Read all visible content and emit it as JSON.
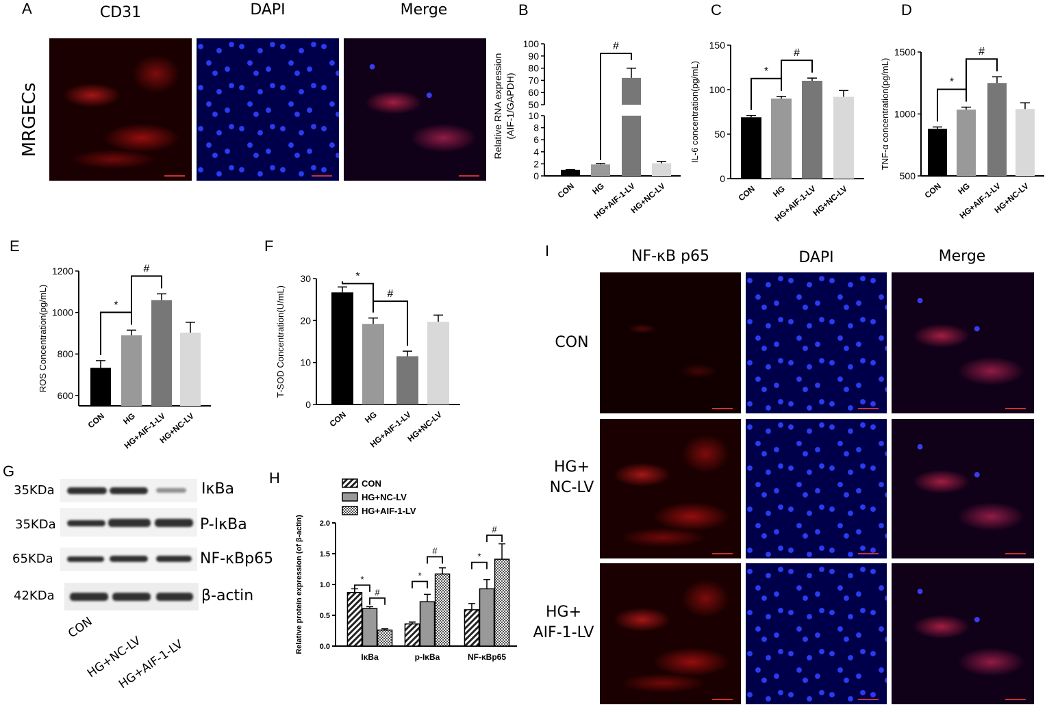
{
  "panel_A": {
    "letter": "A",
    "cols": [
      "CD31",
      "DAPI",
      "Merge"
    ],
    "row": "MRGECs"
  },
  "panel_I": {
    "letter": "I",
    "cols": [
      "NF-κB p65",
      "DAPI",
      "Merge"
    ],
    "rows": [
      {
        "line1": "CON",
        "line2": ""
      },
      {
        "line1": "HG+",
        "line2": "NC-LV"
      },
      {
        "line1": "HG+",
        "line2": "AIF-1-LV"
      }
    ]
  },
  "panel_G": {
    "letter": "G",
    "mw": [
      "35KDa",
      "35KDa",
      "65KDa",
      "42KDa"
    ],
    "proteins": [
      "IκBa",
      "P-IκBa",
      "NF-κBp65",
      "β-actin"
    ],
    "lanes": [
      "CON",
      "HG+NC-LV",
      "HG+AIF-1-LV"
    ]
  },
  "chart_data": [
    {
      "panel": "B",
      "type": "bar",
      "ylabel": "Relative RNA expression (AIF-1/GAPDH)",
      "categories": [
        "CON",
        "HG",
        "HG+AIF-1-LV",
        "HG+NC-LV"
      ],
      "values": [
        1,
        1.9,
        72,
        2.1
      ],
      "errors": [
        0.05,
        0.15,
        8,
        0.3
      ],
      "colors": [
        "#000000",
        "#999999",
        "#777777",
        "#d9d9d9"
      ],
      "axis_break": {
        "lower": [
          0,
          10
        ],
        "upper": [
          50,
          100
        ]
      },
      "lower_ticks": [
        "0",
        "2",
        "4",
        "6",
        "8",
        "10"
      ],
      "upper_ticks": [
        "50",
        "60",
        "70",
        "80",
        "90",
        "100"
      ],
      "annotations": [
        {
          "symbol": "#",
          "between": [
            "HG",
            "HG+AIF-1-LV"
          ]
        }
      ]
    },
    {
      "panel": "C",
      "type": "bar",
      "ylabel": "IL-6 concentration(pg/mL)",
      "categories": [
        "CON",
        "HG",
        "HG+AIF-1-LV",
        "HG+NC-LV"
      ],
      "values": [
        69,
        90,
        110,
        92
      ],
      "errors": [
        2,
        2.5,
        3,
        7
      ],
      "colors": [
        "#000000",
        "#999999",
        "#777777",
        "#d9d9d9"
      ],
      "ylim": [
        0,
        150
      ],
      "yticks": [
        "0",
        "50",
        "100",
        "150"
      ],
      "annotations": [
        {
          "symbol": "*",
          "between": [
            "CON",
            "HG"
          ]
        },
        {
          "symbol": "#",
          "between": [
            "HG",
            "HG+AIF-1-LV"
          ]
        }
      ]
    },
    {
      "panel": "D",
      "type": "bar",
      "ylabel": "TNF-α concentration(pg/mL)",
      "categories": [
        "CON",
        "HG",
        "HG+AIF-1-LV",
        "HG+NC-LV"
      ],
      "values": [
        880,
        1035,
        1250,
        1040
      ],
      "errors": [
        15,
        20,
        50,
        50
      ],
      "colors": [
        "#000000",
        "#999999",
        "#777777",
        "#d9d9d9"
      ],
      "ylim": [
        500,
        1500
      ],
      "yticks": [
        "500",
        "1000",
        "1500"
      ],
      "annotations": [
        {
          "symbol": "*",
          "between": [
            "CON",
            "HG"
          ]
        },
        {
          "symbol": "#",
          "between": [
            "HG",
            "HG+AIF-1-LV"
          ]
        }
      ]
    },
    {
      "panel": "E",
      "type": "bar",
      "ylabel": "ROS Concentration(pg/mL)",
      "categories": [
        "CON",
        "HG",
        "HG+AIF-1-LV",
        "HG+NC-LV"
      ],
      "values": [
        733,
        890,
        1060,
        903
      ],
      "errors": [
        35,
        25,
        30,
        50
      ],
      "colors": [
        "#000000",
        "#999999",
        "#777777",
        "#d9d9d9"
      ],
      "ylim": [
        550,
        1200
      ],
      "yticks": [
        "600",
        "800",
        "1000",
        "1200"
      ],
      "annotations": [
        {
          "symbol": "*",
          "between": [
            "CON",
            "HG"
          ]
        },
        {
          "symbol": "#",
          "between": [
            "HG",
            "HG+AIF-1-LV"
          ]
        }
      ]
    },
    {
      "panel": "F",
      "type": "bar",
      "ylabel": "T-SOD Concentration(U/mL)",
      "categories": [
        "CON",
        "HG",
        "HG+AIF-1-LV",
        "HG+NC-LV"
      ],
      "values": [
        26.7,
        19.2,
        11.5,
        19.7
      ],
      "errors": [
        1.3,
        1.4,
        1.2,
        1.6
      ],
      "colors": [
        "#000000",
        "#999999",
        "#777777",
        "#d9d9d9"
      ],
      "ylim": [
        0,
        30
      ],
      "yticks": [
        "0",
        "10",
        "20",
        "30"
      ],
      "annotations": [
        {
          "symbol": "*",
          "between": [
            "CON",
            "HG"
          ]
        },
        {
          "symbol": "#",
          "between": [
            "HG",
            "HG+AIF-1-LV"
          ]
        }
      ]
    },
    {
      "panel": "H",
      "type": "bar",
      "ylabel": "Relative protein expression (of β-actin)",
      "categories": [
        "IκBa",
        "p-IκBa",
        "NF-κBp65"
      ],
      "series": [
        {
          "name": "CON",
          "values": [
            0.87,
            0.36,
            0.59
          ],
          "errors": [
            0.06,
            0.03,
            0.1
          ]
        },
        {
          "name": "HG+NC-LV",
          "values": [
            0.61,
            0.72,
            0.93
          ],
          "errors": [
            0.03,
            0.12,
            0.15
          ]
        },
        {
          "name": "HG+AIF-1-LV",
          "values": [
            0.26,
            1.17,
            1.41
          ],
          "errors": [
            0.02,
            0.1,
            0.25
          ]
        }
      ],
      "ylim": [
        0,
        2.0
      ],
      "yticks": [
        "0.0",
        "0.5",
        "1.0",
        "1.5",
        "2.0"
      ]
    }
  ]
}
